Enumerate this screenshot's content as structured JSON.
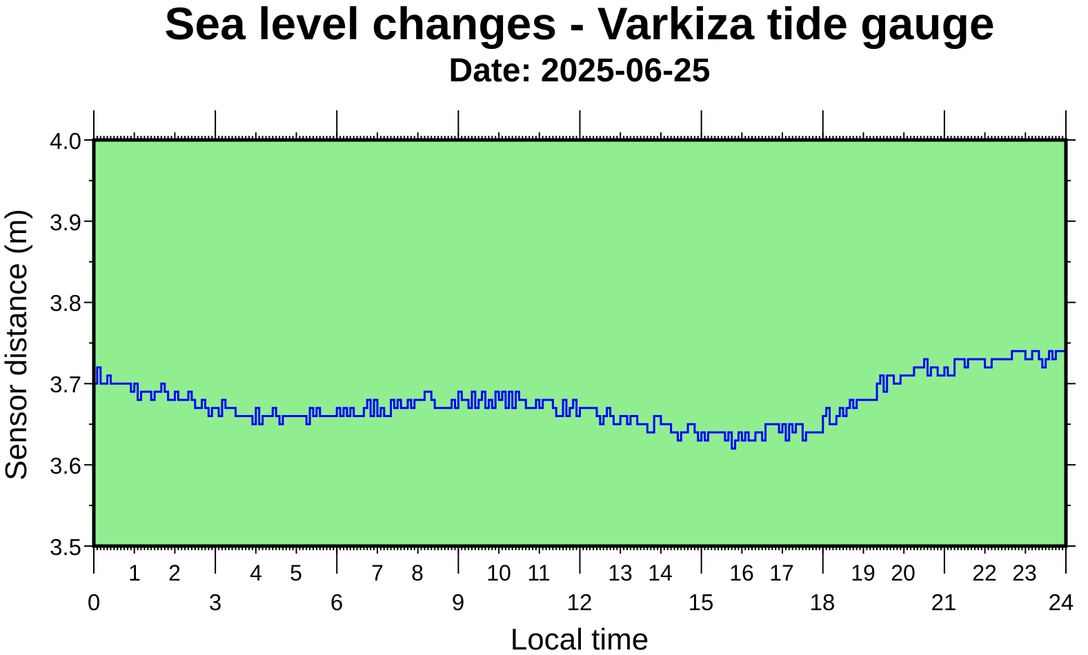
{
  "chart_data": {
    "type": "line",
    "title": "Sea level changes - Varkiza tide gauge",
    "subtitle": "Date: 2025-06-25",
    "xlabel": "Local time",
    "ylabel": "Sensor distance (m)",
    "xlim": [
      0,
      24
    ],
    "ylim": [
      3.5,
      4.0
    ],
    "x_major_ticks": [
      "0",
      "3",
      "6",
      "9",
      "12",
      "15",
      "18",
      "21",
      "24"
    ],
    "x_hour_labels": [
      "1",
      "2",
      "4",
      "5",
      "7",
      "8",
      "10",
      "11",
      "13",
      "14",
      "16",
      "17",
      "19",
      "20",
      "22",
      "23"
    ],
    "y_ticks": [
      "3.5",
      "3.6",
      "3.7",
      "3.8",
      "3.9",
      "4.0"
    ],
    "grid": false,
    "colors": {
      "plot_background": "#90ee90",
      "series": "#0000ff",
      "frame": "#000000"
    },
    "series": [
      {
        "x": [
          0,
          0.5,
          1,
          1.5,
          2,
          2.5,
          3,
          3.5,
          4,
          4.5,
          5,
          5.5,
          6,
          6.5,
          7,
          7.5,
          8,
          8.5,
          9,
          9.5,
          10,
          10.5,
          11,
          11.5,
          12,
          12.5,
          13,
          13.5,
          14,
          14.5,
          15,
          15.5,
          16,
          16.5,
          17,
          17.5,
          18,
          18.5,
          19,
          19.5,
          20,
          20.5,
          21,
          21.5,
          22,
          22.5,
          23,
          23.5,
          24
        ],
        "y": [
          3.71,
          3.7,
          3.69,
          3.69,
          3.68,
          3.675,
          3.67,
          3.665,
          3.66,
          3.66,
          3.66,
          3.66,
          3.66,
          3.665,
          3.67,
          3.675,
          3.675,
          3.68,
          3.68,
          3.68,
          3.68,
          3.675,
          3.675,
          3.67,
          3.665,
          3.66,
          3.655,
          3.65,
          3.645,
          3.64,
          3.64,
          3.635,
          3.635,
          3.64,
          3.64,
          3.645,
          3.655,
          3.665,
          3.68,
          3.7,
          3.715,
          3.72,
          3.72,
          3.72,
          3.725,
          3.73,
          3.73,
          3.73,
          3.73
        ]
      }
    ]
  }
}
